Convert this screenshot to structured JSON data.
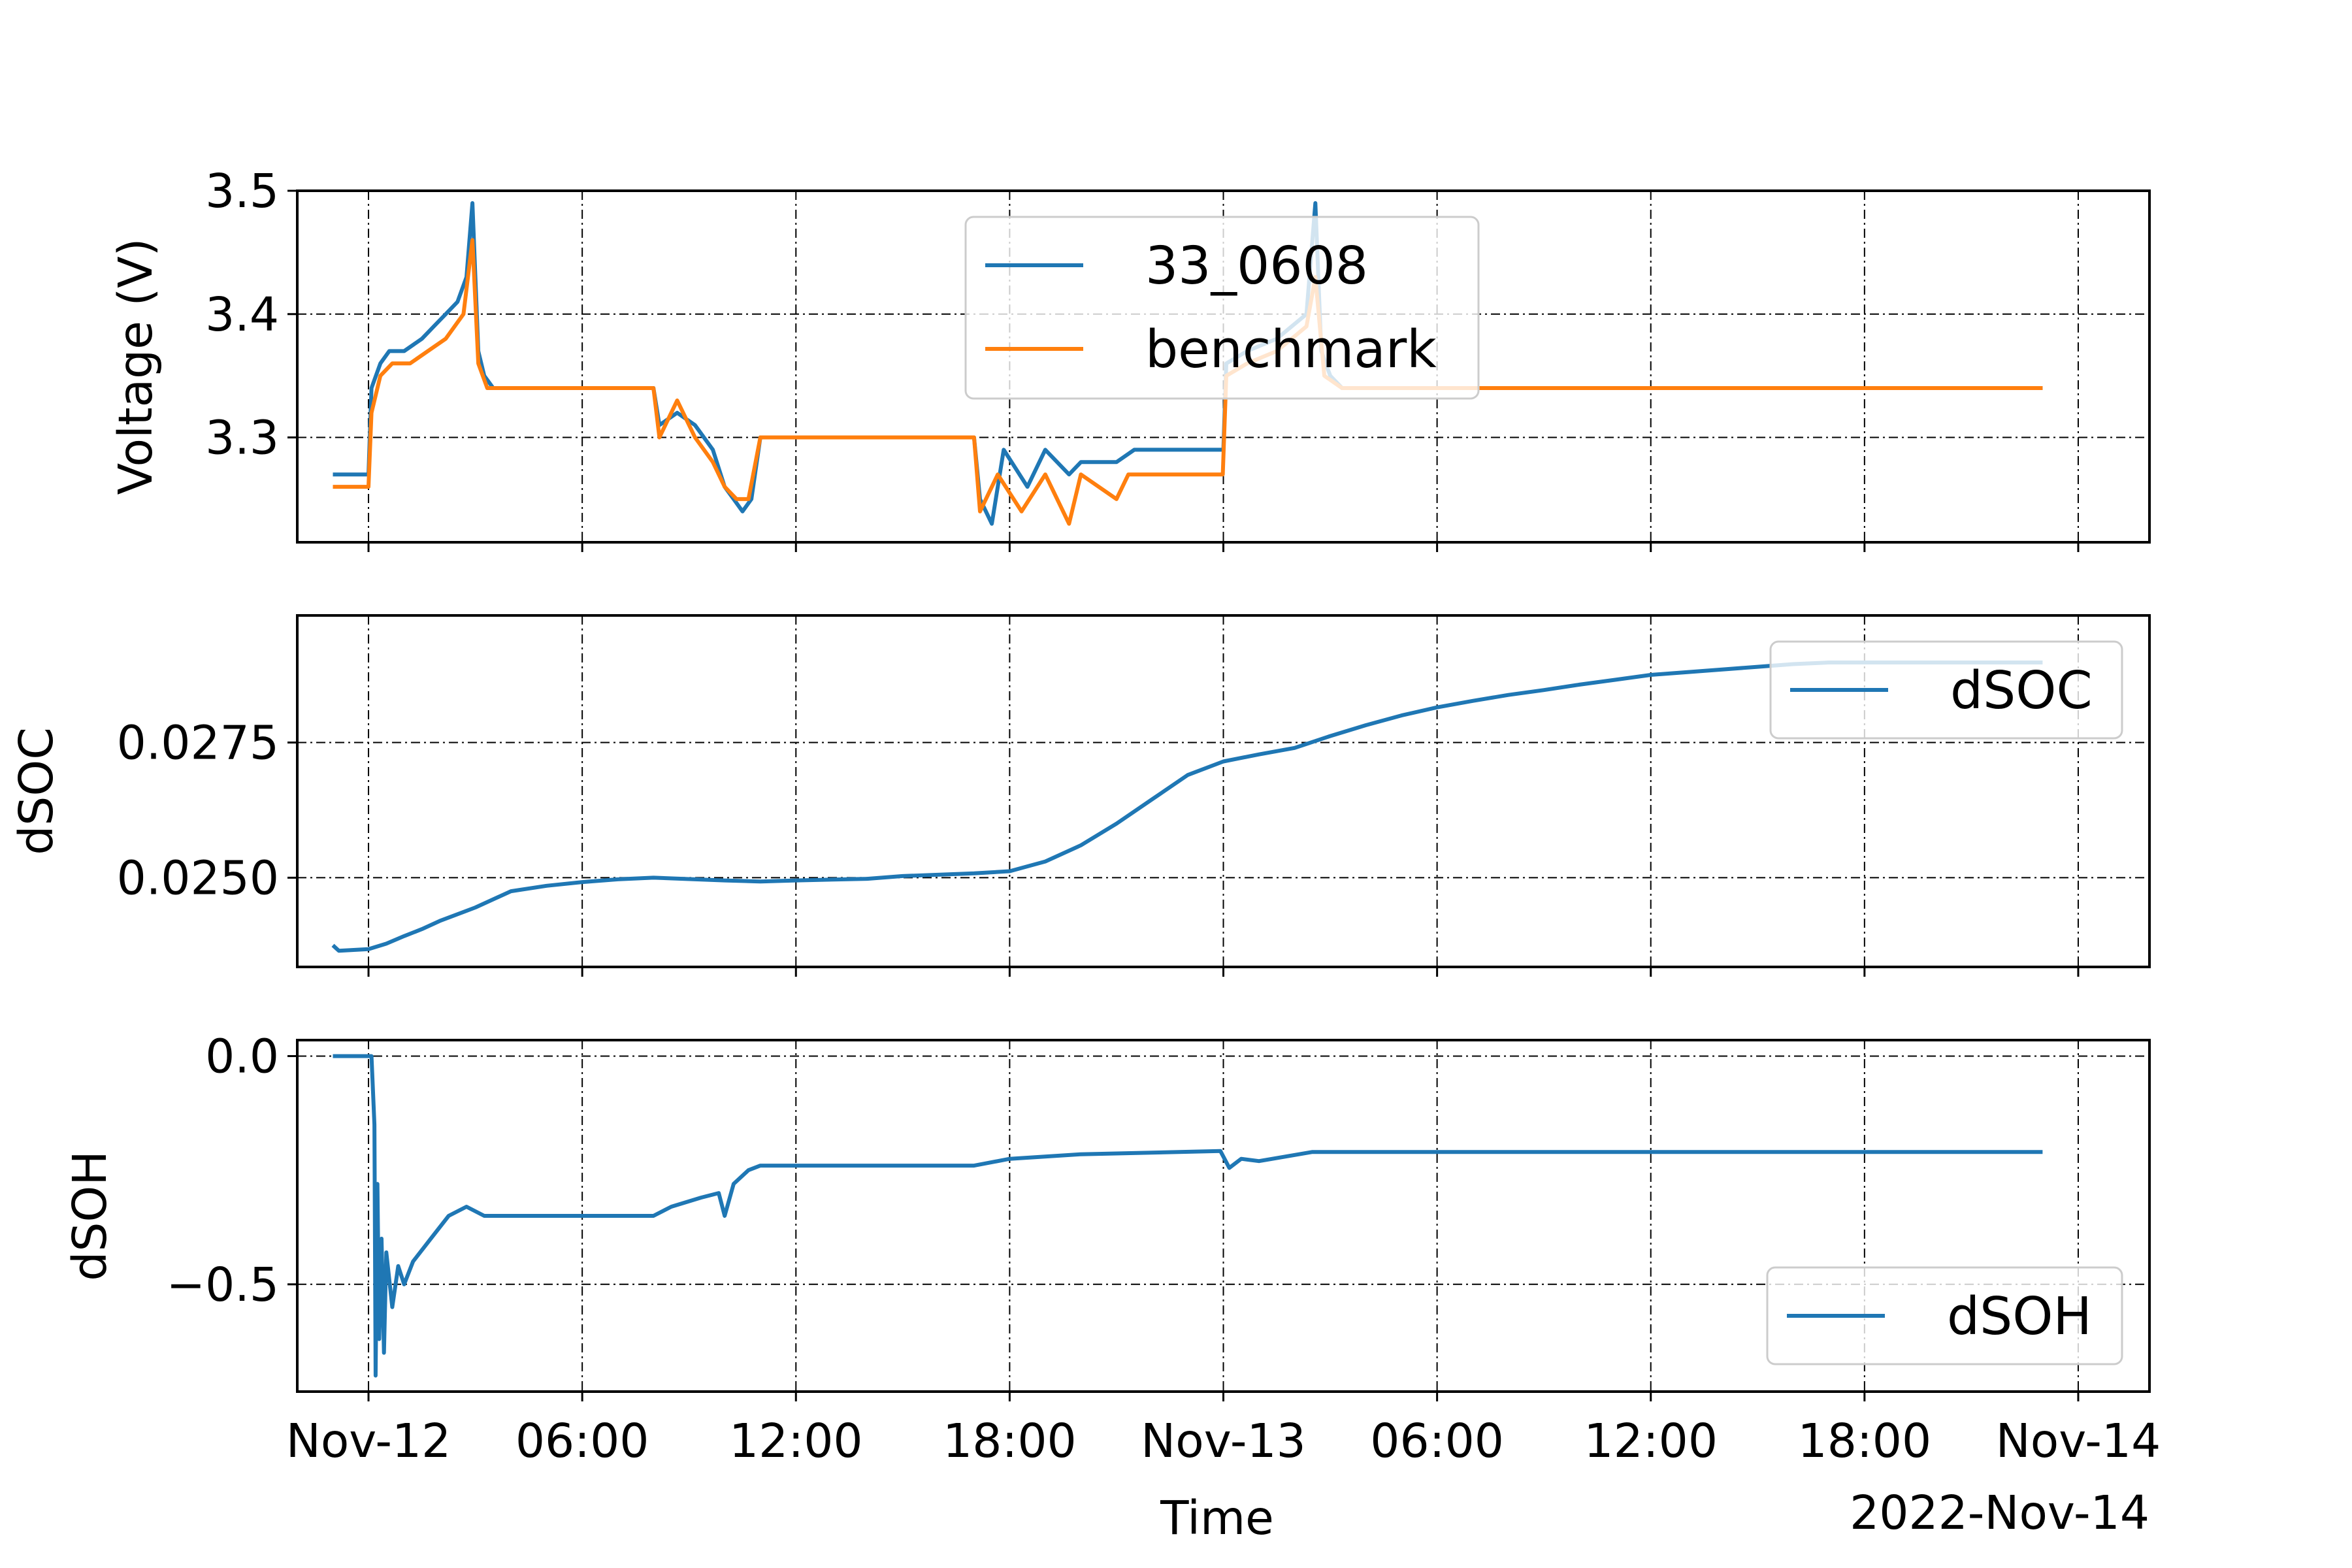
{
  "chart_data": [
    {
      "type": "line",
      "ylabel": "Voltage (V)",
      "ylim": [
        3.215,
        3.5
      ],
      "yticks": [
        3.3,
        3.4,
        3.5
      ],
      "ytick_labels": [
        "3.3",
        "3.4",
        "3.5"
      ],
      "legend_position": "upper-center",
      "grid": true,
      "series": [
        {
          "name": "33_0608",
          "color": "#1f77b4",
          "points": [
            [
              "2022-11-11T23:00",
              3.27
            ],
            [
              "2022-11-12T00:00",
              3.27
            ],
            [
              "2022-11-12T00:05",
              3.34
            ],
            [
              "2022-11-12T00:20",
              3.36
            ],
            [
              "2022-11-12T00:35",
              3.37
            ],
            [
              "2022-11-12T01:00",
              3.37
            ],
            [
              "2022-11-12T01:30",
              3.38
            ],
            [
              "2022-11-12T01:50",
              3.39
            ],
            [
              "2022-11-12T02:10",
              3.4
            ],
            [
              "2022-11-12T02:30",
              3.41
            ],
            [
              "2022-11-12T02:45",
              3.43
            ],
            [
              "2022-11-12T02:55",
              3.49
            ],
            [
              "2022-11-12T03:05",
              3.37
            ],
            [
              "2022-11-12T03:15",
              3.35
            ],
            [
              "2022-11-12T03:30",
              3.34
            ],
            [
              "2022-11-12T08:00",
              3.34
            ],
            [
              "2022-11-12T08:10",
              3.31
            ],
            [
              "2022-11-12T08:40",
              3.32
            ],
            [
              "2022-11-12T09:10",
              3.31
            ],
            [
              "2022-11-12T09:40",
              3.29
            ],
            [
              "2022-11-12T10:00",
              3.26
            ],
            [
              "2022-11-12T10:15",
              3.25
            ],
            [
              "2022-11-12T10:30",
              3.24
            ],
            [
              "2022-11-12T10:45",
              3.25
            ],
            [
              "2022-11-12T11:00",
              3.3
            ],
            [
              "2022-11-12T17:00",
              3.3
            ],
            [
              "2022-11-12T17:10",
              3.25
            ],
            [
              "2022-11-12T17:30",
              3.23
            ],
            [
              "2022-11-12T17:50",
              3.29
            ],
            [
              "2022-11-12T18:30",
              3.26
            ],
            [
              "2022-11-12T19:00",
              3.29
            ],
            [
              "2022-11-12T19:40",
              3.27
            ],
            [
              "2022-11-12T20:00",
              3.28
            ],
            [
              "2022-11-12T21:00",
              3.28
            ],
            [
              "2022-11-12T21:30",
              3.29
            ],
            [
              "2022-11-13T00:00",
              3.29
            ],
            [
              "2022-11-13T00:05",
              3.36
            ],
            [
              "2022-11-13T00:40",
              3.37
            ],
            [
              "2022-11-13T01:30",
              3.38
            ],
            [
              "2022-11-13T02:20",
              3.4
            ],
            [
              "2022-11-13T02:35",
              3.49
            ],
            [
              "2022-11-13T02:45",
              3.37
            ],
            [
              "2022-11-13T03:00",
              3.35
            ],
            [
              "2022-11-13T03:20",
              3.34
            ],
            [
              "2022-11-13T23:00",
              3.34
            ]
          ]
        },
        {
          "name": "benchmark",
          "color": "#ff7f0e",
          "points": [
            [
              "2022-11-11T23:00",
              3.26
            ],
            [
              "2022-11-12T00:00",
              3.26
            ],
            [
              "2022-11-12T00:05",
              3.32
            ],
            [
              "2022-11-12T00:20",
              3.35
            ],
            [
              "2022-11-12T00:40",
              3.36
            ],
            [
              "2022-11-12T01:10",
              3.36
            ],
            [
              "2022-11-12T01:40",
              3.37
            ],
            [
              "2022-11-12T02:10",
              3.38
            ],
            [
              "2022-11-12T02:40",
              3.4
            ],
            [
              "2022-11-12T02:55",
              3.46
            ],
            [
              "2022-11-12T03:05",
              3.36
            ],
            [
              "2022-11-12T03:20",
              3.34
            ],
            [
              "2022-11-12T08:00",
              3.34
            ],
            [
              "2022-11-12T08:10",
              3.3
            ],
            [
              "2022-11-12T08:40",
              3.33
            ],
            [
              "2022-11-12T09:10",
              3.3
            ],
            [
              "2022-11-12T09:40",
              3.28
            ],
            [
              "2022-11-12T10:00",
              3.26
            ],
            [
              "2022-11-12T10:20",
              3.25
            ],
            [
              "2022-11-12T10:40",
              3.25
            ],
            [
              "2022-11-12T11:00",
              3.3
            ],
            [
              "2022-11-12T17:00",
              3.3
            ],
            [
              "2022-11-12T17:10",
              3.24
            ],
            [
              "2022-11-12T17:40",
              3.27
            ],
            [
              "2022-11-12T18:20",
              3.24
            ],
            [
              "2022-11-12T19:00",
              3.27
            ],
            [
              "2022-11-12T19:40",
              3.23
            ],
            [
              "2022-11-12T20:00",
              3.27
            ],
            [
              "2022-11-12T21:00",
              3.25
            ],
            [
              "2022-11-12T21:20",
              3.27
            ],
            [
              "2022-11-12T23:59",
              3.27
            ],
            [
              "2022-11-13T00:05",
              3.35
            ],
            [
              "2022-11-13T00:40",
              3.36
            ],
            [
              "2022-11-13T01:30",
              3.37
            ],
            [
              "2022-11-13T02:20",
              3.39
            ],
            [
              "2022-11-13T02:35",
              3.43
            ],
            [
              "2022-11-13T02:50",
              3.35
            ],
            [
              "2022-11-13T03:20",
              3.34
            ],
            [
              "2022-11-13T23:00",
              3.34
            ]
          ]
        }
      ]
    },
    {
      "type": "line",
      "ylabel": "dSOC",
      "ylim": [
        0.02335,
        0.02985
      ],
      "yticks": [
        0.025,
        0.0275
      ],
      "ytick_labels": [
        "0.0250",
        "0.0275"
      ],
      "legend_position": "upper-right",
      "grid": true,
      "series": [
        {
          "name": "dSOC",
          "color": "#1f77b4",
          "points": [
            [
              "2022-11-11T23:00",
              0.02375
            ],
            [
              "2022-11-11T23:10",
              0.02365
            ],
            [
              "2022-11-12T00:00",
              0.02368
            ],
            [
              "2022-11-12T00:30",
              0.02378
            ],
            [
              "2022-11-12T01:00",
              0.02392
            ],
            [
              "2022-11-12T01:30",
              0.02405
            ],
            [
              "2022-11-12T02:00",
              0.0242
            ],
            [
              "2022-11-12T03:00",
              0.02445
            ],
            [
              "2022-11-12T04:00",
              0.02475
            ],
            [
              "2022-11-12T05:00",
              0.02485
            ],
            [
              "2022-11-12T06:00",
              0.02492
            ],
            [
              "2022-11-12T07:00",
              0.02497
            ],
            [
              "2022-11-12T08:00",
              0.025
            ],
            [
              "2022-11-12T10:00",
              0.02495
            ],
            [
              "2022-11-12T11:00",
              0.02493
            ],
            [
              "2022-11-12T12:00",
              0.02495
            ],
            [
              "2022-11-12T14:00",
              0.02498
            ],
            [
              "2022-11-12T15:00",
              0.02503
            ],
            [
              "2022-11-12T17:00",
              0.02508
            ],
            [
              "2022-11-12T18:00",
              0.02512
            ],
            [
              "2022-11-12T19:00",
              0.0253
            ],
            [
              "2022-11-12T20:00",
              0.0256
            ],
            [
              "2022-11-12T21:00",
              0.026
            ],
            [
              "2022-11-12T22:00",
              0.02645
            ],
            [
              "2022-11-12T23:00",
              0.0269
            ],
            [
              "2022-11-13T00:00",
              0.02715
            ],
            [
              "2022-11-13T01:00",
              0.02728
            ],
            [
              "2022-11-13T02:00",
              0.0274
            ],
            [
              "2022-11-13T03:00",
              0.02762
            ],
            [
              "2022-11-13T04:00",
              0.02782
            ],
            [
              "2022-11-13T05:00",
              0.028
            ],
            [
              "2022-11-13T06:00",
              0.02815
            ],
            [
              "2022-11-13T07:00",
              0.02827
            ],
            [
              "2022-11-13T08:00",
              0.02838
            ],
            [
              "2022-11-13T09:00",
              0.02847
            ],
            [
              "2022-11-13T10:00",
              0.02857
            ],
            [
              "2022-11-13T11:00",
              0.02866
            ],
            [
              "2022-11-13T12:00",
              0.02875
            ],
            [
              "2022-11-13T13:00",
              0.0288
            ],
            [
              "2022-11-13T14:00",
              0.02885
            ],
            [
              "2022-11-13T15:00",
              0.0289
            ],
            [
              "2022-11-13T16:00",
              0.02895
            ],
            [
              "2022-11-13T17:00",
              0.02898
            ],
            [
              "2022-11-13T23:00",
              0.02898
            ]
          ]
        }
      ]
    },
    {
      "type": "line",
      "ylabel": "dSOH",
      "xlabel": "Time",
      "ylim": [
        -0.735,
        0.035
      ],
      "yticks": [
        -0.5,
        0.0
      ],
      "ytick_labels": [
        "−0.5",
        "0.0"
      ],
      "xticks": [
        "2022-11-12T00:00",
        "2022-11-12T06:00",
        "2022-11-12T12:00",
        "2022-11-12T18:00",
        "2022-11-13T00:00",
        "2022-11-13T06:00",
        "2022-11-13T12:00",
        "2022-11-13T18:00",
        "2022-11-14T00:00"
      ],
      "xtick_labels": [
        "Nov-12",
        "06:00",
        "12:00",
        "18:00",
        "Nov-13",
        "06:00",
        "12:00",
        "18:00",
        "Nov-14"
      ],
      "x_offset_label": "2022-Nov-14",
      "legend_position": "lower-right",
      "grid": true,
      "series": [
        {
          "name": "dSOH",
          "color": "#1f77b4",
          "points": [
            [
              "2022-11-11T23:00",
              0.0
            ],
            [
              "2022-11-12T00:05",
              0.0
            ],
            [
              "2022-11-12T00:10",
              -0.15
            ],
            [
              "2022-11-12T00:12",
              -0.7
            ],
            [
              "2022-11-12T00:15",
              -0.28
            ],
            [
              "2022-11-12T00:18",
              -0.62
            ],
            [
              "2022-11-12T00:22",
              -0.4
            ],
            [
              "2022-11-12T00:26",
              -0.65
            ],
            [
              "2022-11-12T00:30",
              -0.43
            ],
            [
              "2022-11-12T00:40",
              -0.55
            ],
            [
              "2022-11-12T00:50",
              -0.46
            ],
            [
              "2022-11-12T01:00",
              -0.5
            ],
            [
              "2022-11-12T01:15",
              -0.45
            ],
            [
              "2022-11-12T01:45",
              -0.4
            ],
            [
              "2022-11-12T02:15",
              -0.35
            ],
            [
              "2022-11-12T02:45",
              -0.33
            ],
            [
              "2022-11-12T03:15",
              -0.35
            ],
            [
              "2022-11-12T08:00",
              -0.35
            ],
            [
              "2022-11-12T08:30",
              -0.33
            ],
            [
              "2022-11-12T09:20",
              -0.31
            ],
            [
              "2022-11-12T09:50",
              -0.3
            ],
            [
              "2022-11-12T10:00",
              -0.35
            ],
            [
              "2022-11-12T10:15",
              -0.28
            ],
            [
              "2022-11-12T10:40",
              -0.25
            ],
            [
              "2022-11-12T11:00",
              -0.24
            ],
            [
              "2022-11-12T17:00",
              -0.24
            ],
            [
              "2022-11-12T18:00",
              -0.225
            ],
            [
              "2022-11-12T20:00",
              -0.215
            ],
            [
              "2022-11-12T23:55",
              -0.208
            ],
            [
              "2022-11-13T00:10",
              -0.245
            ],
            [
              "2022-11-13T00:30",
              -0.225
            ],
            [
              "2022-11-13T01:00",
              -0.23
            ],
            [
              "2022-11-13T02:30",
              -0.21
            ],
            [
              "2022-11-13T23:00",
              -0.21
            ]
          ]
        }
      ]
    }
  ]
}
